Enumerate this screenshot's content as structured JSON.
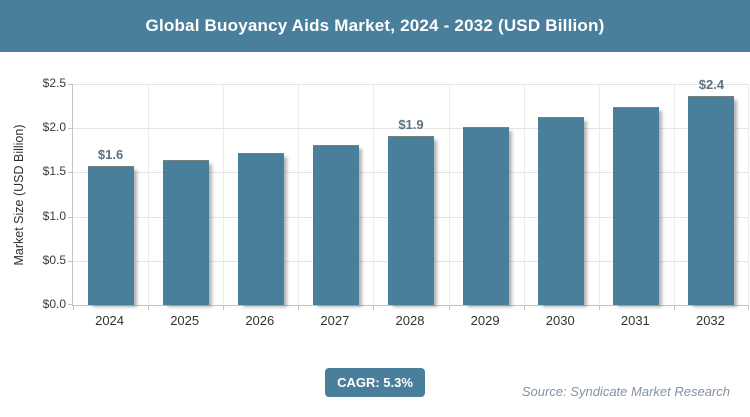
{
  "chart_data": {
    "type": "bar",
    "title": "Global Buoyancy Aids Market, 2024 - 2032 (USD Billion)",
    "ylabel": "Market Size (USD Billion)",
    "xlabel": "",
    "categories": [
      "2024",
      "2025",
      "2026",
      "2027",
      "2028",
      "2029",
      "2030",
      "2031",
      "2032"
    ],
    "values": [
      1.56,
      1.63,
      1.71,
      1.8,
      1.9,
      2.0,
      2.12,
      2.23,
      2.35
    ],
    "point_labels": [
      "$1.6",
      "",
      "",
      "",
      "$1.9",
      "",
      "",
      "",
      "$2.4"
    ],
    "ylim": [
      0,
      2.5
    ],
    "ytick_values": [
      0,
      0.5,
      1.0,
      1.5,
      2.0,
      2.5
    ],
    "ytick_labels": [
      "$0.0",
      "$0.5",
      "$1.0",
      "$1.5",
      "$2.0",
      "$2.5"
    ],
    "grid": "horizontal-and-vertical",
    "legend": "none"
  },
  "footer": {
    "cagr_label": "CAGR: 5.3%",
    "source": "Source: Syndicate Market Research"
  },
  "colors": {
    "header_bg": "#4a7f9c",
    "bar_fill": "#4a7f9c",
    "badge_bg": "#4a7f9c",
    "title_text": "#ffffff",
    "grid_line": "#e4e4e4",
    "axis_line": "#c3c3c3",
    "tick_text": "#3c3c3c",
    "point_label_text": "#5d7181",
    "source_text": "#8493a3"
  }
}
